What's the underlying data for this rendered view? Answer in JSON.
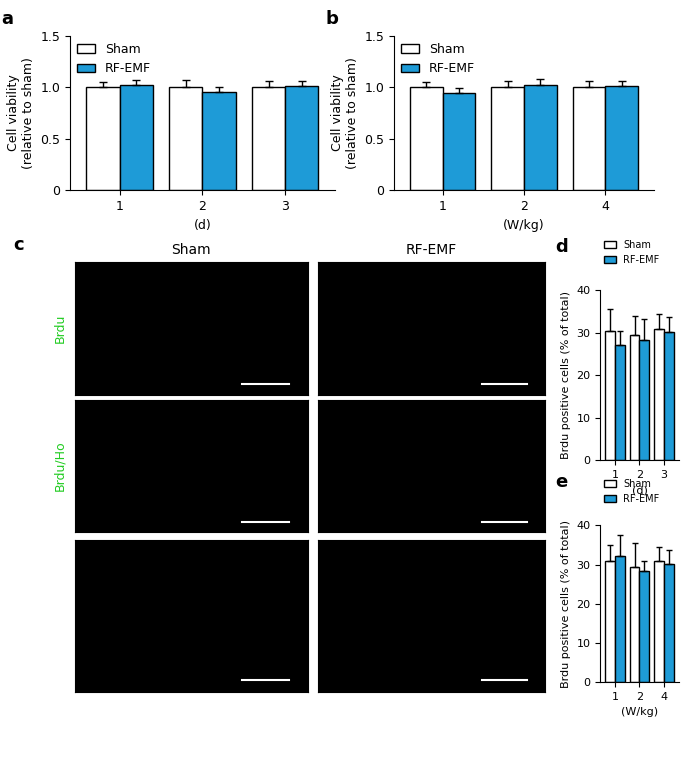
{
  "chart_data": [
    {
      "panel": "a",
      "type": "bar",
      "categories": [
        "1",
        "2",
        "3"
      ],
      "x_label": "(d)",
      "y_label": "Cell viability\n(relative to sham)",
      "ylim": [
        0,
        1.5
      ],
      "yticks": [
        0,
        0.5,
        1.0,
        1.5
      ],
      "legend": "upper left",
      "series": [
        {
          "name": "Sham",
          "color": "#ffffff",
          "values": [
            1.0,
            1.0,
            1.0
          ],
          "error": [
            0.05,
            0.07,
            0.06
          ]
        },
        {
          "name": "RF-EMF",
          "color": "#1e9bd7",
          "values": [
            1.02,
            0.95,
            1.01
          ],
          "error": [
            0.05,
            0.05,
            0.05
          ]
        }
      ]
    },
    {
      "panel": "b",
      "type": "bar",
      "categories": [
        "1",
        "2",
        "4"
      ],
      "x_label": "(W/kg)",
      "y_label": "Cell viability\n(relative to sham)",
      "ylim": [
        0,
        1.5
      ],
      "yticks": [
        0,
        0.5,
        1.0,
        1.5
      ],
      "legend": "upper left",
      "series": [
        {
          "name": "Sham",
          "color": "#ffffff",
          "values": [
            1.0,
            1.0,
            1.0
          ],
          "error": [
            0.05,
            0.06,
            0.06
          ]
        },
        {
          "name": "RF-EMF",
          "color": "#1e9bd7",
          "values": [
            0.94,
            1.02,
            1.01
          ],
          "error": [
            0.05,
            0.06,
            0.05
          ]
        }
      ]
    },
    {
      "panel": "d",
      "type": "bar",
      "categories": [
        "1",
        "2",
        "3"
      ],
      "x_label": "(d)",
      "y_label": "Brdu positive cells (% of total)",
      "ylim": [
        0,
        40
      ],
      "yticks": [
        0,
        10,
        20,
        30,
        40
      ],
      "legend": "upper left",
      "series": [
        {
          "name": "Sham",
          "color": "#ffffff",
          "values": [
            30.5,
            29.5,
            31.0
          ],
          "error": [
            5.0,
            4.5,
            3.5
          ]
        },
        {
          "name": "RF-EMF",
          "color": "#1e9bd7",
          "values": [
            27.0,
            28.2,
            30.2
          ],
          "error": [
            3.5,
            5.0,
            3.5
          ]
        }
      ]
    },
    {
      "panel": "e",
      "type": "bar",
      "categories": [
        "1",
        "2",
        "4"
      ],
      "x_label": "(W/kg)",
      "y_label": "Brdu positive cells (% of total)",
      "ylim": [
        0,
        40
      ],
      "yticks": [
        0,
        10,
        20,
        30,
        40
      ],
      "legend": "upper left",
      "series": [
        {
          "name": "Sham",
          "color": "#ffffff",
          "values": [
            31.0,
            29.3,
            31.0
          ],
          "error": [
            4.0,
            6.3,
            3.5
          ]
        },
        {
          "name": "RF-EMF",
          "color": "#1e9bd7",
          "values": [
            32.2,
            28.3,
            30.2
          ],
          "error": [
            5.3,
            2.5,
            3.5
          ]
        }
      ]
    }
  ],
  "images": {
    "panel": "c",
    "columns": [
      "Sham",
      "RF-EMF"
    ],
    "rows": [
      {
        "label": "Brdu",
        "color": "#22cc22"
      },
      {
        "label": "Brdu/Ho",
        "color": "#22cc22"
      },
      {
        "label": null,
        "color": null
      }
    ]
  }
}
